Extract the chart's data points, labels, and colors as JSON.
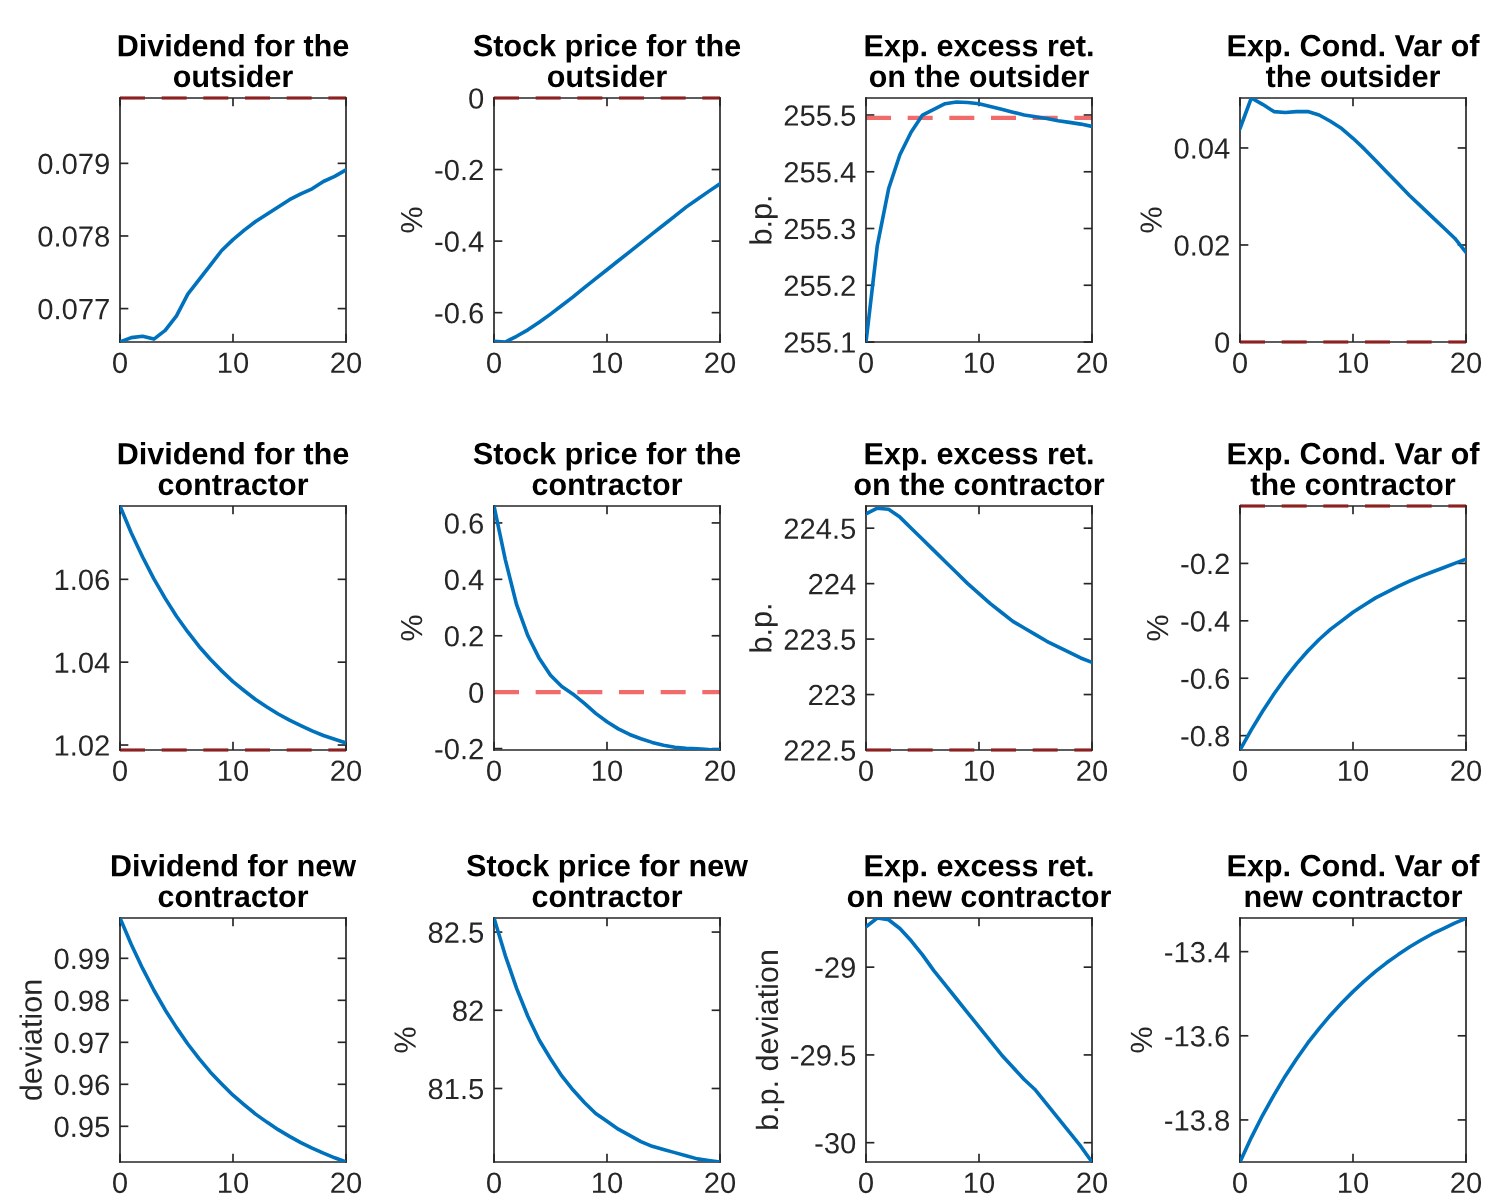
{
  "chart_data": [
    {
      "type": "line",
      "title": "Dividend for the\noutsider",
      "x": [
        0,
        1,
        2,
        3,
        4,
        5,
        6,
        7,
        8,
        9,
        10,
        11,
        12,
        13,
        14,
        15,
        16,
        17,
        18,
        19,
        20
      ],
      "xlim": [
        0,
        20
      ],
      "xticks": [
        0,
        10,
        20
      ],
      "ylim": [
        0.07654,
        0.0799
      ],
      "yticks": [
        0.077,
        0.078,
        0.079
      ],
      "series": [
        {
          "color": "#0072bd",
          "values": [
            0.07654,
            0.0766,
            0.07662,
            0.07658,
            0.0767,
            0.0769,
            0.0772,
            0.0774,
            0.0776,
            0.0778,
            0.07795,
            0.07808,
            0.0782,
            0.0783,
            0.0784,
            0.0785,
            0.07858,
            0.07865,
            0.07875,
            0.07882,
            0.07891
          ]
        }
      ],
      "ref_lines": [
        {
          "axis": "y",
          "value": 0.0799,
          "color": "#f26b6b",
          "line_style": "dashed"
        }
      ]
    },
    {
      "type": "line",
      "title": "Stock price for the\noutsider",
      "ylabel": "%",
      "x": [
        0,
        1,
        2,
        3,
        4,
        5,
        6,
        7,
        8,
        9,
        10,
        11,
        12,
        13,
        14,
        15,
        16,
        17,
        18,
        19,
        20
      ],
      "xlim": [
        0,
        20
      ],
      "xticks": [
        0,
        10,
        20
      ],
      "ylim": [
        -0.682,
        0
      ],
      "yticks": [
        -0.6,
        -0.4,
        -0.2,
        0
      ],
      "series": [
        {
          "color": "#0072bd",
          "values": [
            -0.68,
            -0.682,
            -0.666,
            -0.648,
            -0.627,
            -0.604,
            -0.58,
            -0.556,
            -0.53,
            -0.505,
            -0.48,
            -0.455,
            -0.43,
            -0.405,
            -0.38,
            -0.355,
            -0.33,
            -0.305,
            -0.283,
            -0.261,
            -0.24
          ]
        }
      ],
      "ref_lines": [
        {
          "axis": "y",
          "value": 0,
          "color": "#f26b6b",
          "line_style": "dashed"
        }
      ]
    },
    {
      "type": "line",
      "title": "Exp. excess ret.\non the outsider",
      "ylabel": "b.p.",
      "x": [
        0,
        1,
        2,
        3,
        4,
        5,
        6,
        7,
        8,
        9,
        10,
        11,
        12,
        13,
        14,
        15,
        16,
        17,
        18,
        19,
        20
      ],
      "xlim": [
        0,
        20
      ],
      "xticks": [
        0,
        10,
        20
      ],
      "ylim": [
        255.1,
        255.53
      ],
      "yticks": [
        255.1,
        255.2,
        255.3,
        255.4,
        255.5
      ],
      "series": [
        {
          "color": "#0072bd",
          "values": [
            255.1,
            255.27,
            255.37,
            255.43,
            255.47,
            255.5,
            255.51,
            255.52,
            255.523,
            255.522,
            255.52,
            255.515,
            255.51,
            255.505,
            255.5,
            255.497,
            255.494,
            255.49,
            255.487,
            255.484,
            255.48
          ]
        }
      ],
      "ref_lines": [
        {
          "axis": "y",
          "value": 255.495,
          "color": "#f26b6b",
          "line_style": "dashed"
        }
      ]
    },
    {
      "type": "line",
      "title": "Exp. Cond. Var of\nthe outsider",
      "ylabel": "%",
      "x": [
        0,
        1,
        2,
        3,
        4,
        5,
        6,
        7,
        8,
        9,
        10,
        11,
        12,
        13,
        14,
        15,
        16,
        17,
        18,
        19,
        20
      ],
      "xlim": [
        0,
        20
      ],
      "xticks": [
        0,
        10,
        20
      ],
      "ylim": [
        0,
        0.0503
      ],
      "yticks": [
        0,
        0.02,
        0.04
      ],
      "series": [
        {
          "color": "#0072bd",
          "values": [
            0.044,
            0.0503,
            0.049,
            0.0475,
            0.0473,
            0.0475,
            0.0475,
            0.0468,
            0.0455,
            0.044,
            0.042,
            0.0398,
            0.0374,
            0.035,
            0.0326,
            0.0302,
            0.028,
            0.0258,
            0.0236,
            0.0214,
            0.0185
          ]
        }
      ],
      "ref_lines": [
        {
          "axis": "y",
          "value": 0,
          "color": "#f26b6b",
          "line_style": "dashed"
        }
      ]
    },
    {
      "type": "line",
      "title": "Dividend for the\ncontractor",
      "x": [
        0,
        1,
        2,
        3,
        4,
        5,
        6,
        7,
        8,
        9,
        10,
        11,
        12,
        13,
        14,
        15,
        16,
        17,
        18,
        19,
        20
      ],
      "xlim": [
        0,
        20
      ],
      "xticks": [
        0,
        10,
        20
      ],
      "ylim": [
        1.0188,
        1.0777
      ],
      "yticks": [
        1.02,
        1.04,
        1.06
      ],
      "series": [
        {
          "color": "#0072bd",
          "values": [
            1.0777,
            1.0712,
            1.0654,
            1.0601,
            1.0554,
            1.0511,
            1.0473,
            1.0438,
            1.0407,
            1.0379,
            1.0353,
            1.0331,
            1.031,
            1.0292,
            1.0275,
            1.026,
            1.0247,
            1.0234,
            1.0223,
            1.0214,
            1.0205
          ]
        }
      ],
      "ref_lines": [
        {
          "axis": "y",
          "value": 1.0188,
          "color": "#f26b6b",
          "line_style": "dashed"
        }
      ]
    },
    {
      "type": "line",
      "title": "Stock price for the\ncontractor",
      "ylabel": "%",
      "x": [
        0,
        1,
        2,
        3,
        4,
        5,
        6,
        7,
        8,
        9,
        10,
        11,
        12,
        13,
        14,
        15,
        16,
        17,
        18,
        19,
        20
      ],
      "xlim": [
        0,
        20
      ],
      "xticks": [
        0,
        10,
        20
      ],
      "ylim": [
        -0.205,
        0.66
      ],
      "yticks": [
        -0.2,
        0,
        0.2,
        0.4,
        0.6
      ],
      "series": [
        {
          "color": "#0072bd",
          "values": [
            0.66,
            0.47,
            0.31,
            0.2,
            0.12,
            0.06,
            0.02,
            -0.007,
            -0.04,
            -0.075,
            -0.105,
            -0.13,
            -0.15,
            -0.165,
            -0.178,
            -0.188,
            -0.195,
            -0.199,
            -0.201,
            -0.203,
            -0.204
          ]
        }
      ],
      "ref_lines": [
        {
          "axis": "y",
          "value": 0,
          "color": "#f26b6b",
          "line_style": "dashed"
        }
      ]
    },
    {
      "type": "line",
      "title": "Exp. excess ret.\non the contractor",
      "ylabel": "b.p.",
      "x": [
        0,
        1,
        2,
        3,
        4,
        5,
        6,
        7,
        8,
        9,
        10,
        11,
        12,
        13,
        14,
        15,
        16,
        17,
        18,
        19,
        20
      ],
      "xlim": [
        0,
        20
      ],
      "xticks": [
        0,
        10,
        20
      ],
      "ylim": [
        222.5,
        224.7
      ],
      "yticks": [
        222.5,
        223,
        223.5,
        224,
        224.5
      ],
      "series": [
        {
          "color": "#0072bd",
          "values": [
            224.63,
            224.68,
            224.67,
            224.6,
            224.5,
            224.4,
            224.3,
            224.2,
            224.1,
            224.0,
            223.91,
            223.82,
            223.74,
            223.66,
            223.6,
            223.54,
            223.48,
            223.43,
            223.38,
            223.33,
            223.29
          ]
        }
      ],
      "ref_lines": [
        {
          "axis": "y",
          "value": 222.5,
          "color": "#f26b6b",
          "line_style": "dashed"
        }
      ]
    },
    {
      "type": "line",
      "title": "Exp. Cond. Var of\nthe contractor",
      "ylabel": "%",
      "x": [
        0,
        1,
        2,
        3,
        4,
        5,
        6,
        7,
        8,
        9,
        10,
        11,
        12,
        13,
        14,
        15,
        16,
        17,
        18,
        19,
        20
      ],
      "xlim": [
        0,
        20
      ],
      "xticks": [
        0,
        10,
        20
      ],
      "ylim": [
        -0.85,
        0
      ],
      "yticks": [
        -0.8,
        -0.6,
        -0.4,
        -0.2
      ],
      "series": [
        {
          "color": "#0072bd",
          "values": [
            -0.85,
            -0.78,
            -0.715,
            -0.655,
            -0.6,
            -0.55,
            -0.505,
            -0.465,
            -0.43,
            -0.4,
            -0.37,
            -0.345,
            -0.32,
            -0.3,
            -0.28,
            -0.262,
            -0.245,
            -0.23,
            -0.215,
            -0.2,
            -0.185
          ]
        }
      ],
      "ref_lines": [
        {
          "axis": "y",
          "value": 0,
          "color": "#f26b6b",
          "line_style": "dashed"
        }
      ]
    },
    {
      "type": "line",
      "title": "Dividend for new\ncontractor",
      "ylabel": "deviation",
      "x": [
        0,
        1,
        2,
        3,
        4,
        5,
        6,
        7,
        8,
        9,
        10,
        11,
        12,
        13,
        14,
        15,
        16,
        17,
        18,
        19,
        20
      ],
      "xlim": [
        0,
        20
      ],
      "xticks": [
        0,
        10,
        20
      ],
      "ylim": [
        0.9415,
        0.9996
      ],
      "yticks": [
        0.95,
        0.96,
        0.97,
        0.98,
        0.99
      ],
      "series": [
        {
          "color": "#0072bd",
          "values": [
            0.9996,
            0.9933,
            0.9876,
            0.9824,
            0.9777,
            0.9735,
            0.9696,
            0.9661,
            0.9629,
            0.9601,
            0.9574,
            0.9551,
            0.9529,
            0.951,
            0.9492,
            0.9476,
            0.9461,
            0.9448,
            0.9436,
            0.9425,
            0.9415
          ]
        }
      ]
    },
    {
      "type": "line",
      "title": "Stock price for new\ncontractor",
      "ylabel": "%",
      "x": [
        0,
        1,
        2,
        3,
        4,
        5,
        6,
        7,
        8,
        9,
        10,
        11,
        12,
        13,
        14,
        15,
        16,
        17,
        18,
        19,
        20
      ],
      "xlim": [
        0,
        20
      ],
      "xticks": [
        0,
        10,
        20
      ],
      "ylim": [
        81.03,
        82.59
      ],
      "yticks": [
        81.5,
        82,
        82.5
      ],
      "series": [
        {
          "color": "#0072bd",
          "values": [
            82.59,
            82.35,
            82.14,
            81.96,
            81.81,
            81.69,
            81.58,
            81.49,
            81.41,
            81.34,
            81.29,
            81.24,
            81.2,
            81.16,
            81.13,
            81.11,
            81.09,
            81.07,
            81.05,
            81.04,
            81.03
          ]
        }
      ]
    },
    {
      "type": "line",
      "title": "Exp. excess ret.\non new contractor",
      "ylabel": "b.p. deviation",
      "x": [
        0,
        1,
        2,
        3,
        4,
        5,
        6,
        7,
        8,
        9,
        10,
        11,
        12,
        13,
        14,
        15,
        16,
        17,
        18,
        19,
        20
      ],
      "xlim": [
        0,
        20
      ],
      "xticks": [
        0,
        10,
        20
      ],
      "ylim": [
        -30.11,
        -28.72
      ],
      "yticks": [
        -30,
        -29.5,
        -29
      ],
      "series": [
        {
          "color": "#0072bd",
          "values": [
            -28.77,
            -28.72,
            -28.73,
            -28.78,
            -28.85,
            -28.93,
            -29.02,
            -29.1,
            -29.18,
            -29.26,
            -29.34,
            -29.42,
            -29.5,
            -29.57,
            -29.64,
            -29.7,
            -29.78,
            -29.86,
            -29.94,
            -30.02,
            -30.11
          ]
        }
      ]
    },
    {
      "type": "line",
      "title": "Exp. Cond. Var of\nnew contractor",
      "ylabel": "%",
      "x": [
        0,
        1,
        2,
        3,
        4,
        5,
        6,
        7,
        8,
        9,
        10,
        11,
        12,
        13,
        14,
        15,
        16,
        17,
        18,
        19,
        20
      ],
      "xlim": [
        0,
        20
      ],
      "xticks": [
        0,
        10,
        20
      ],
      "ylim": [
        -13.9,
        -13.32
      ],
      "yticks": [
        -13.8,
        -13.6,
        -13.4
      ],
      "series": [
        {
          "color": "#0072bd",
          "values": [
            -13.9,
            -13.842,
            -13.789,
            -13.741,
            -13.696,
            -13.655,
            -13.617,
            -13.583,
            -13.551,
            -13.522,
            -13.495,
            -13.47,
            -13.447,
            -13.426,
            -13.407,
            -13.389,
            -13.373,
            -13.358,
            -13.345,
            -13.332,
            -13.321
          ]
        }
      ]
    }
  ]
}
